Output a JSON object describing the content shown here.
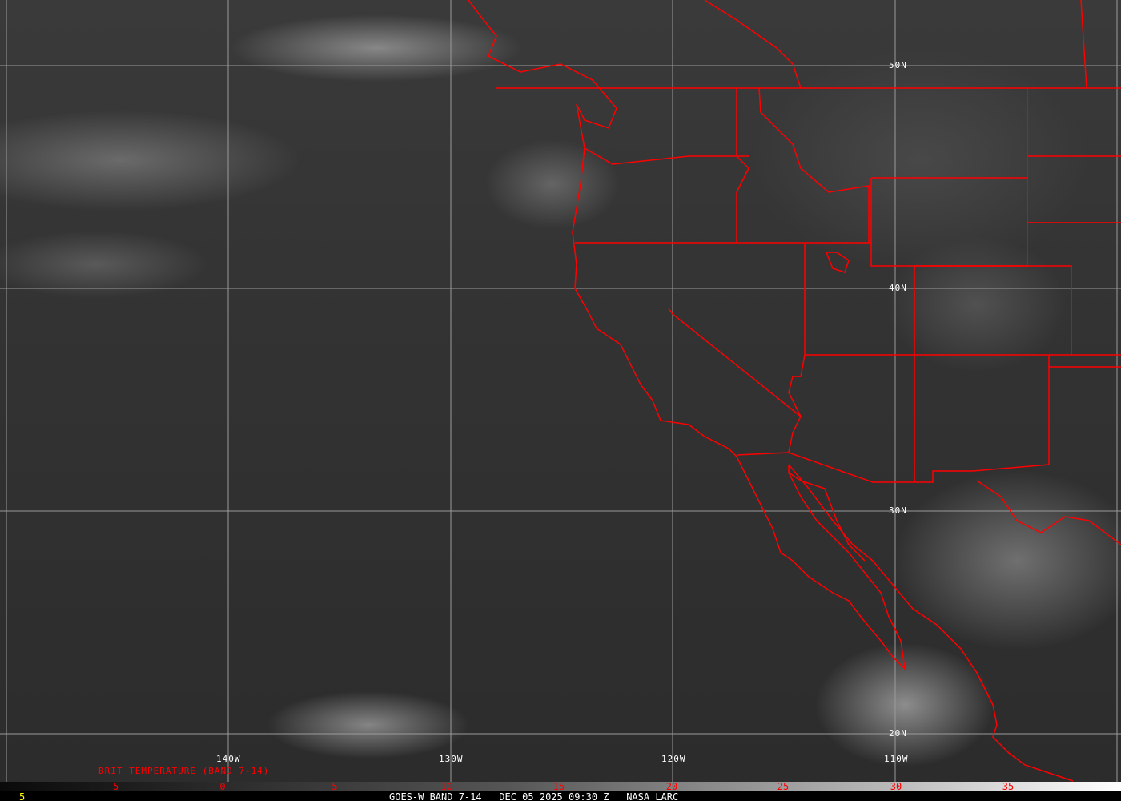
{
  "map": {
    "latitude_labels": [
      "50N",
      "40N",
      "30N",
      "20N"
    ],
    "longitude_labels": [
      "140W",
      "130W",
      "120W",
      "110W"
    ],
    "border_color": "#ff0000",
    "grid_color": "#9a9a9a"
  },
  "colorbar": {
    "title": "BRIT TEMPERATURE (BAND 7-14)",
    "ticks": [
      "-5",
      "0",
      "5",
      "10",
      "15",
      "20",
      "25",
      "30",
      "35"
    ],
    "tick_color": "#ff0000"
  },
  "footer": {
    "frame_number": "5",
    "caption": "GOES-W BAND 7-14   DEC 05 2025 09:30 Z   NASA LARC"
  }
}
